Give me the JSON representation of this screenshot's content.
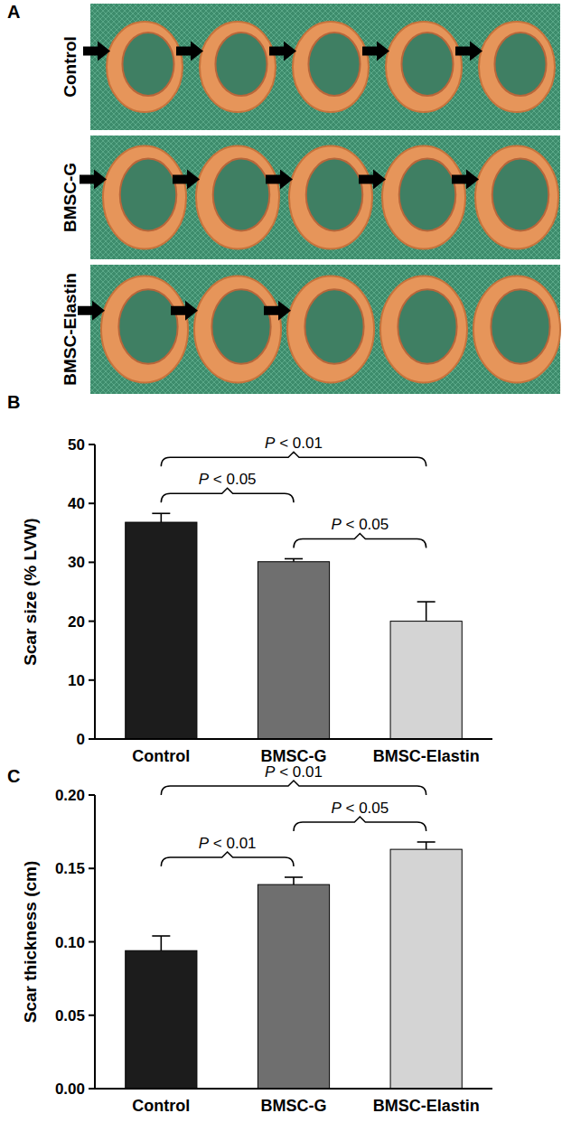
{
  "photo_panel": {
    "panel": "A",
    "rows": [
      {
        "label": "Control",
        "arrows": 5
      },
      {
        "label": "BMSC-G",
        "arrows": 5
      },
      {
        "label": "BMSC-Elastin",
        "arrows": 3
      }
    ]
  },
  "chart_data": [
    {
      "panel": "B",
      "type": "bar",
      "y_label": "Scar size (% LVW)",
      "categories": [
        "Control",
        "BMSC-G",
        "BMSC-Elastin"
      ],
      "values": [
        36.8,
        30.1,
        20.0
      ],
      "errors": [
        1.5,
        0.5,
        3.3
      ],
      "colors": [
        "#1c1c1c",
        "#6f6f6f",
        "#d4d4d4"
      ],
      "ylim": [
        0,
        50
      ],
      "yticks": [
        0,
        10,
        20,
        30,
        40,
        50
      ],
      "annotations": [
        {
          "text": "P < 0.05",
          "between": [
            "Control",
            "BMSC-G"
          ]
        },
        {
          "text": "P < 0.01",
          "between": [
            "Control",
            "BMSC-Elastin"
          ]
        },
        {
          "text": "P < 0.05",
          "between": [
            "BMSC-G",
            "BMSC-Elastin"
          ]
        }
      ]
    },
    {
      "panel": "C",
      "type": "bar",
      "y_label": "Scar thickness (cm)",
      "categories": [
        "Control",
        "BMSC-G",
        "BMSC-Elastin"
      ],
      "values": [
        0.094,
        0.139,
        0.163
      ],
      "errors": [
        0.01,
        0.005,
        0.005
      ],
      "colors": [
        "#1c1c1c",
        "#6f6f6f",
        "#d4d4d4"
      ],
      "ylim": [
        0,
        0.2
      ],
      "yticks": [
        {
          "value": 0,
          "label": "0.00"
        },
        {
          "value": 0.05,
          "label": "0.05"
        },
        {
          "value": 0.1,
          "label": "0.10"
        },
        {
          "value": 0.15,
          "label": "0.15"
        },
        {
          "value": 0.2,
          "label": "0.20"
        }
      ],
      "annotations": [
        {
          "text": "P < 0.01",
          "between": [
            "Control",
            "BMSC-Elastin"
          ]
        },
        {
          "text": "P < 0.01",
          "between": [
            "Control",
            "BMSC-G"
          ]
        },
        {
          "text": "P < 0.05",
          "between": [
            "BMSC-G",
            "BMSC-Elastin"
          ]
        }
      ]
    }
  ]
}
